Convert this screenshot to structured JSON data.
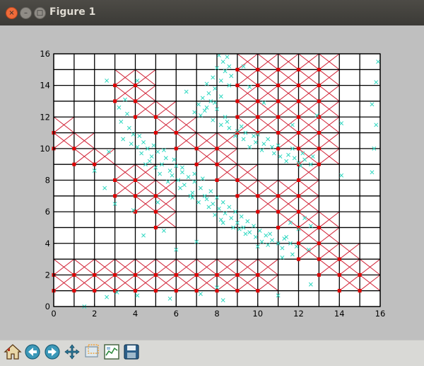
{
  "window": {
    "title": "Figure 1"
  },
  "toolbar": {
    "buttons": [
      {
        "name": "home",
        "icon": "home-icon"
      },
      {
        "name": "back",
        "icon": "back-arrow-icon"
      },
      {
        "name": "forward",
        "icon": "forward-arrow-icon"
      },
      {
        "name": "pan",
        "icon": "pan-move-icon"
      },
      {
        "name": "zoom",
        "icon": "zoom-rect-icon"
      },
      {
        "name": "configure",
        "icon": "configure-subplots-icon"
      },
      {
        "name": "save",
        "icon": "save-disk-icon"
      }
    ]
  },
  "colors": {
    "grid_line": "#000000",
    "cross": "#d2263a",
    "point": "#2dd7c0",
    "node": "#e00000",
    "figure_bg": "#bfbfbf"
  },
  "chart_data": {
    "type": "scatter",
    "xlim": [
      0,
      16
    ],
    "ylim": [
      0,
      16
    ],
    "x_ticks": [
      "0",
      "2",
      "4",
      "6",
      "8",
      "10",
      "12",
      "14",
      "16"
    ],
    "y_ticks": [
      "0",
      "2",
      "4",
      "6",
      "8",
      "10",
      "12",
      "14",
      "16"
    ],
    "grid": true,
    "crossed_cells": [
      [
        9,
        15
      ],
      [
        10,
        15
      ],
      [
        11,
        15
      ],
      [
        12,
        15
      ],
      [
        13,
        15
      ],
      [
        3,
        14
      ],
      [
        4,
        14
      ],
      [
        9,
        14
      ],
      [
        10,
        14
      ],
      [
        11,
        14
      ],
      [
        12,
        14
      ],
      [
        13,
        14
      ],
      [
        3,
        13
      ],
      [
        4,
        13
      ],
      [
        9,
        13
      ],
      [
        10,
        13
      ],
      [
        11,
        13
      ],
      [
        12,
        13
      ],
      [
        13,
        13
      ],
      [
        4,
        12
      ],
      [
        5,
        12
      ],
      [
        9,
        12
      ],
      [
        10,
        12
      ],
      [
        11,
        12
      ],
      [
        12,
        12
      ],
      [
        13,
        12
      ],
      [
        0,
        11
      ],
      [
        5,
        11
      ],
      [
        6,
        11
      ],
      [
        9,
        11
      ],
      [
        10,
        11
      ],
      [
        11,
        11
      ],
      [
        12,
        11
      ],
      [
        13,
        11
      ],
      [
        0,
        10
      ],
      [
        1,
        10
      ],
      [
        6,
        10
      ],
      [
        7,
        10
      ],
      [
        8,
        10
      ],
      [
        11,
        10
      ],
      [
        12,
        10
      ],
      [
        13,
        10
      ],
      [
        1,
        9
      ],
      [
        2,
        9
      ],
      [
        7,
        9
      ],
      [
        8,
        9
      ],
      [
        12,
        9
      ],
      [
        13,
        9
      ],
      [
        3,
        8
      ],
      [
        4,
        8
      ],
      [
        8,
        8
      ],
      [
        9,
        8
      ],
      [
        12,
        8
      ],
      [
        3,
        7
      ],
      [
        4,
        7
      ],
      [
        5,
        7
      ],
      [
        9,
        7
      ],
      [
        10,
        7
      ],
      [
        11,
        7
      ],
      [
        12,
        7
      ],
      [
        4,
        6
      ],
      [
        5,
        6
      ],
      [
        10,
        6
      ],
      [
        11,
        6
      ],
      [
        12,
        6
      ],
      [
        5,
        5
      ],
      [
        11,
        5
      ],
      [
        12,
        5
      ],
      [
        13,
        5
      ],
      [
        12,
        4
      ],
      [
        13,
        4
      ],
      [
        12,
        3
      ],
      [
        13,
        3
      ],
      [
        14,
        3
      ],
      [
        0,
        2
      ],
      [
        1,
        2
      ],
      [
        2,
        2
      ],
      [
        3,
        2
      ],
      [
        4,
        2
      ],
      [
        5,
        2
      ],
      [
        6,
        2
      ],
      [
        7,
        2
      ],
      [
        8,
        2
      ],
      [
        9,
        2
      ],
      [
        10,
        2
      ],
      [
        13,
        2
      ],
      [
        14,
        2
      ],
      [
        15,
        2
      ],
      [
        0,
        1
      ],
      [
        1,
        1
      ],
      [
        2,
        1
      ],
      [
        3,
        1
      ],
      [
        4,
        1
      ],
      [
        5,
        1
      ],
      [
        6,
        1
      ],
      [
        7,
        1
      ],
      [
        8,
        1
      ],
      [
        9,
        1
      ],
      [
        10,
        1
      ],
      [
        14,
        1
      ],
      [
        15,
        1
      ]
    ],
    "points": [
      [
        8.1,
        15.9
      ],
      [
        8.5,
        15.8
      ],
      [
        8.3,
        15.5
      ],
      [
        8.6,
        15.2
      ],
      [
        8.0,
        15.1
      ],
      [
        8.4,
        14.9
      ],
      [
        8.7,
        14.6
      ],
      [
        7.8,
        14.5
      ],
      [
        8.2,
        14.3
      ],
      [
        7.5,
        14.1
      ],
      [
        8.6,
        14.0
      ],
      [
        7.9,
        13.8
      ],
      [
        7.6,
        13.5
      ],
      [
        8.2,
        13.3
      ],
      [
        7.3,
        13.2
      ],
      [
        7.7,
        13.0
      ],
      [
        7.1,
        12.8
      ],
      [
        7.5,
        12.6
      ],
      [
        8.0,
        12.5
      ],
      [
        6.9,
        12.3
      ],
      [
        7.2,
        12.1
      ],
      [
        8.4,
        12.0
      ],
      [
        7.8,
        11.8
      ],
      [
        8.2,
        11.5
      ],
      [
        8.6,
        11.3
      ],
      [
        9.0,
        11.1
      ],
      [
        9.4,
        11.0
      ],
      [
        9.8,
        10.8
      ],
      [
        9.3,
        10.6
      ],
      [
        9.9,
        10.4
      ],
      [
        10.3,
        10.3
      ],
      [
        10.7,
        10.1
      ],
      [
        10.2,
        9.9
      ],
      [
        10.8,
        9.7
      ],
      [
        11.1,
        9.5
      ],
      [
        11.5,
        9.6
      ],
      [
        11.8,
        9.4
      ],
      [
        11.4,
        9.2
      ],
      [
        12.0,
        9.1
      ],
      [
        12.3,
        9.3
      ],
      [
        12.6,
        9.0
      ],
      [
        12.1,
        8.9
      ],
      [
        3.5,
        13.1
      ],
      [
        3.2,
        12.6
      ],
      [
        3.6,
        12.2
      ],
      [
        3.3,
        11.7
      ],
      [
        3.7,
        11.3
      ],
      [
        3.9,
        10.9
      ],
      [
        3.4,
        10.6
      ],
      [
        3.8,
        10.3
      ],
      [
        4.1,
        10.1
      ],
      [
        4.4,
        10.4
      ],
      [
        4.6,
        10.0
      ],
      [
        4.3,
        9.7
      ],
      [
        4.8,
        9.5
      ],
      [
        5.1,
        9.8
      ],
      [
        4.7,
        9.2
      ],
      [
        5.3,
        9.0
      ],
      [
        5.5,
        9.4
      ],
      [
        5.0,
        8.8
      ],
      [
        5.7,
        8.6
      ],
      [
        6.0,
        8.9
      ],
      [
        5.8,
        8.3
      ],
      [
        6.3,
        8.5
      ],
      [
        6.1,
        8.0
      ],
      [
        6.6,
        8.2
      ],
      [
        6.4,
        7.7
      ],
      [
        6.9,
        7.9
      ],
      [
        7.2,
        7.5
      ],
      [
        6.8,
        7.2
      ],
      [
        7.4,
        7.0
      ],
      [
        7.7,
        7.3
      ],
      [
        7.5,
        6.8
      ],
      [
        8.0,
        6.9
      ],
      [
        7.8,
        6.5
      ],
      [
        8.3,
        6.6
      ],
      [
        8.1,
        6.2
      ],
      [
        8.6,
        6.3
      ],
      [
        8.4,
        5.9
      ],
      [
        8.9,
        6.0
      ],
      [
        8.7,
        5.6
      ],
      [
        9.2,
        5.7
      ],
      [
        9.0,
        5.3
      ],
      [
        9.5,
        5.4
      ],
      [
        9.3,
        5.0
      ],
      [
        9.8,
        5.1
      ],
      [
        9.6,
        4.7
      ],
      [
        10.1,
        4.8
      ],
      [
        9.9,
        4.4
      ],
      [
        10.4,
        4.5
      ],
      [
        10.2,
        4.1
      ],
      [
        10.7,
        4.2
      ],
      [
        10.5,
        3.9
      ],
      [
        11.0,
        4.0
      ],
      [
        11.3,
        4.3
      ],
      [
        11.6,
        4.0
      ],
      [
        11.2,
        3.7
      ],
      [
        11.9,
        3.8
      ],
      [
        6.3,
        8.8
      ],
      [
        6.9,
        8.4
      ],
      [
        7.3,
        8.1
      ],
      [
        6.7,
        7.0
      ],
      [
        7.1,
        6.6
      ],
      [
        7.9,
        5.8
      ],
      [
        8.3,
        5.3
      ],
      [
        8.8,
        5.0
      ],
      [
        9.4,
        4.6
      ],
      [
        10.0,
        3.8
      ],
      [
        4.2,
        10.8
      ],
      [
        4.9,
        10.2
      ],
      [
        5.4,
        9.9
      ],
      [
        5.9,
        9.3
      ],
      [
        4.5,
        9.0
      ],
      [
        5.2,
        8.4
      ],
      [
        5.6,
        7.9
      ],
      [
        6.2,
        7.5
      ],
      [
        6.8,
        6.9
      ],
      [
        7.6,
        6.3
      ],
      [
        8.2,
        5.5
      ],
      [
        9.1,
        4.9
      ],
      [
        10.6,
        4.6
      ],
      [
        11.4,
        4.4
      ],
      [
        7.9,
        12.9
      ],
      [
        7.4,
        12.4
      ],
      [
        8.5,
        11.7
      ],
      [
        9.2,
        11.4
      ],
      [
        10.0,
        10.9
      ],
      [
        10.5,
        10.6
      ],
      [
        11.0,
        10.2
      ],
      [
        11.7,
        10.0
      ],
      [
        12.2,
        9.7
      ],
      [
        12.7,
        9.5
      ],
      [
        8.9,
        10.8
      ],
      [
        9.6,
        10.1
      ],
      [
        15.9,
        15.5
      ],
      [
        15.8,
        14.2
      ],
      [
        15.6,
        12.8
      ],
      [
        15.8,
        11.5
      ],
      [
        15.7,
        10.0
      ],
      [
        15.6,
        8.5
      ],
      [
        14.1,
        8.3
      ],
      [
        12.6,
        5.1
      ],
      [
        12.0,
        4.9
      ],
      [
        11.6,
        5.3
      ],
      [
        12.3,
        5.6
      ],
      [
        11.7,
        3.3
      ],
      [
        11.2,
        3.1
      ],
      [
        12.5,
        3.6
      ],
      [
        12.6,
        1.4
      ],
      [
        11.0,
        0.7
      ],
      [
        8.0,
        1.2
      ],
      [
        8.3,
        0.4
      ],
      [
        7.2,
        0.8
      ],
      [
        5.7,
        0.5
      ],
      [
        4.1,
        0.7
      ],
      [
        2.6,
        0.6
      ],
      [
        1.5,
        0.0
      ],
      [
        3.1,
        0.9
      ],
      [
        6.0,
        3.6
      ],
      [
        7.0,
        4.1
      ],
      [
        5.4,
        4.8
      ],
      [
        4.4,
        4.5
      ],
      [
        3.9,
        6.1
      ],
      [
        5.1,
        6.6
      ],
      [
        2.5,
        7.5
      ],
      [
        3.0,
        6.5
      ],
      [
        2.7,
        9.8
      ],
      [
        2.0,
        8.6
      ],
      [
        2.6,
        14.3
      ],
      [
        4.1,
        14.3
      ],
      [
        6.5,
        13.6
      ],
      [
        9.3,
        15.2
      ],
      [
        9.6,
        13.9
      ],
      [
        10.3,
        12.9
      ],
      [
        12.9,
        12.1
      ],
      [
        14.1,
        11.6
      ],
      [
        11.7,
        11.5
      ]
    ]
  }
}
